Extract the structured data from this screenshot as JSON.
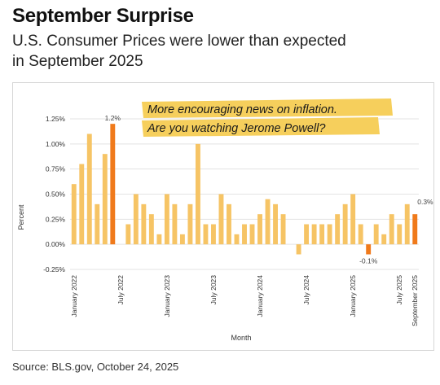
{
  "header": {
    "title": "September Surprise",
    "subtitle": "U.S. Consumer Prices were lower than expected in September 2025"
  },
  "annotation": {
    "line1": "More encouraging news on inflation.",
    "line2": "Are you watching Jerome Powell?",
    "highlight_color": "#f6cf5c"
  },
  "footer": {
    "source": "Source: BLS.gov, October 24, 2025"
  },
  "chart_data": {
    "type": "bar",
    "xlabel": "Month",
    "ylabel": "Percent",
    "ylim": [
      -0.25,
      1.25
    ],
    "y_ticks": [
      "1.25%",
      "1.00%",
      "0.75%",
      "0.50%",
      "0.25%",
      "0.00%",
      "-0.25%"
    ],
    "y_tick_values": [
      1.25,
      1.0,
      0.75,
      0.5,
      0.25,
      0.0,
      -0.25
    ],
    "grid": true,
    "colors": {
      "default": "#f6c465",
      "highlight": "#f07a1b"
    },
    "x_tick_labels": [
      {
        "label": "January 2022",
        "index": 0
      },
      {
        "label": "July 2022",
        "index": 6
      },
      {
        "label": "January 2023",
        "index": 12
      },
      {
        "label": "July 2023",
        "index": 18
      },
      {
        "label": "January 2024",
        "index": 24
      },
      {
        "label": "July 2024",
        "index": 30
      },
      {
        "label": "January 2025",
        "index": 36
      },
      {
        "label": "July 2025",
        "index": 42
      },
      {
        "label": "September 2025",
        "index": 44
      }
    ],
    "values": [
      0.6,
      0.8,
      1.1,
      0.4,
      0.9,
      1.2,
      null,
      0.2,
      0.5,
      0.4,
      0.3,
      0.1,
      0.5,
      0.4,
      0.1,
      0.4,
      1.0,
      0.2,
      0.2,
      0.5,
      0.4,
      0.1,
      0.2,
      0.2,
      0.3,
      0.45,
      0.4,
      0.3,
      null,
      -0.1,
      0.2,
      0.2,
      0.2,
      0.2,
      0.3,
      0.4,
      0.5,
      0.2,
      -0.1,
      0.2,
      0.1,
      0.3,
      0.2,
      0.4,
      0.3
    ],
    "highlight_indices": [
      5,
      38,
      44
    ],
    "data_labels": [
      {
        "index": 5,
        "text": "1.2%"
      },
      {
        "index": 38,
        "text": "-0.1%"
      },
      {
        "index": 44,
        "text": "0.3%"
      }
    ]
  }
}
